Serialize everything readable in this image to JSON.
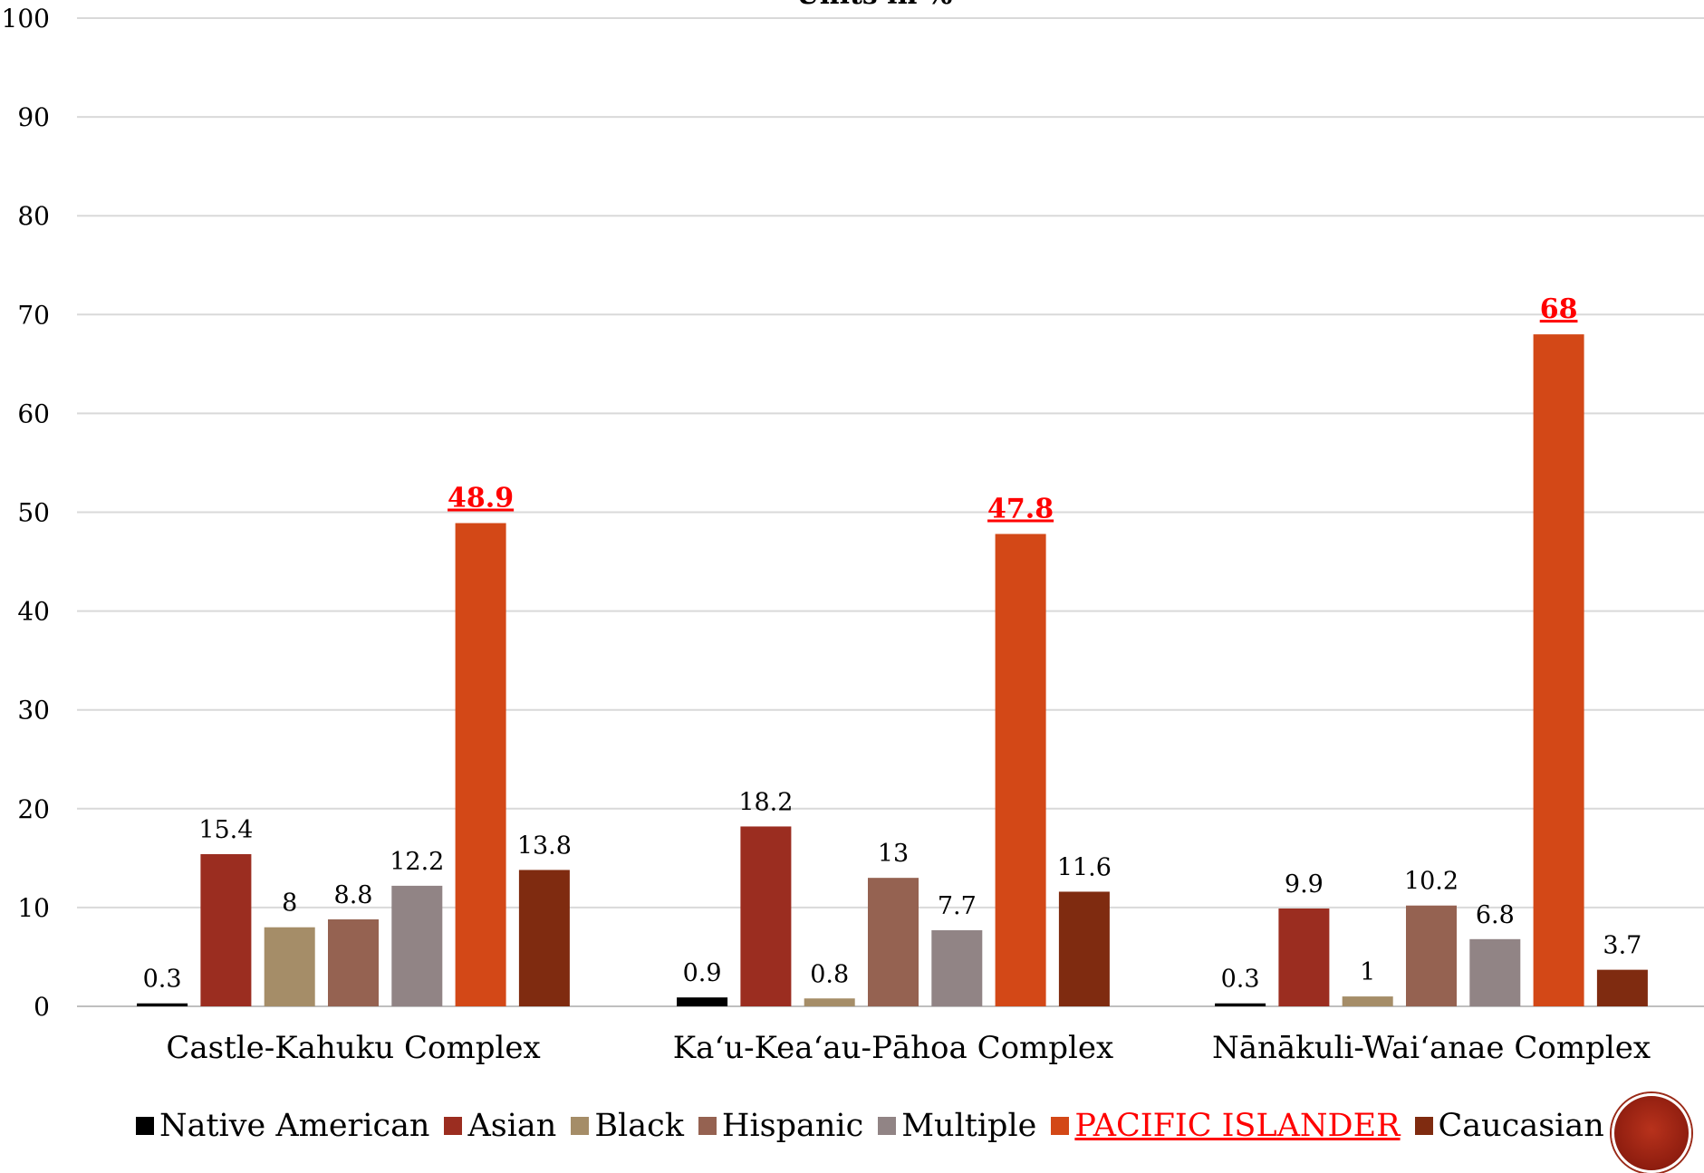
{
  "chart_data": {
    "type": "bar",
    "title": "Units in %",
    "ylim": [
      0,
      100
    ],
    "yticks": [
      0,
      10,
      20,
      30,
      40,
      50,
      60,
      70,
      80,
      90,
      100
    ],
    "categories": [
      "Castle-Kahuku Complex",
      "Kaʻu-Keaʻau-Pāhoa Complex",
      "Nānākuli-Waiʻanae Complex"
    ],
    "series": [
      {
        "name": "Native American",
        "color": "#000000",
        "values": [
          0.3,
          0.9,
          0.3
        ]
      },
      {
        "name": "Asian",
        "color": "#9b2d20",
        "values": [
          15.4,
          18.2,
          9.9
        ]
      },
      {
        "name": "Black",
        "color": "#a58d68",
        "values": [
          8,
          0.8,
          1
        ]
      },
      {
        "name": "Hispanic",
        "color": "#956251",
        "values": [
          8.8,
          13,
          10.2
        ]
      },
      {
        "name": "Multiple",
        "color": "#918485",
        "values": [
          12.2,
          7.7,
          6.8
        ]
      },
      {
        "name": "PACIFIC ISLANDER",
        "color": "#d34817",
        "values": [
          48.9,
          47.8,
          68
        ],
        "highlight": true
      },
      {
        "name": "Caucasian",
        "color": "#855d5d",
        "values": [
          13.8,
          11.6,
          3.7
        ]
      }
    ],
    "grid": true,
    "legend_position": "bottom"
  },
  "colors": {
    "caucasian_bar": "#7f2b10",
    "highlight_label": "#ff0000",
    "gridline": "#d9d9d9"
  },
  "logo": {
    "icon": "circle-logo-icon"
  }
}
